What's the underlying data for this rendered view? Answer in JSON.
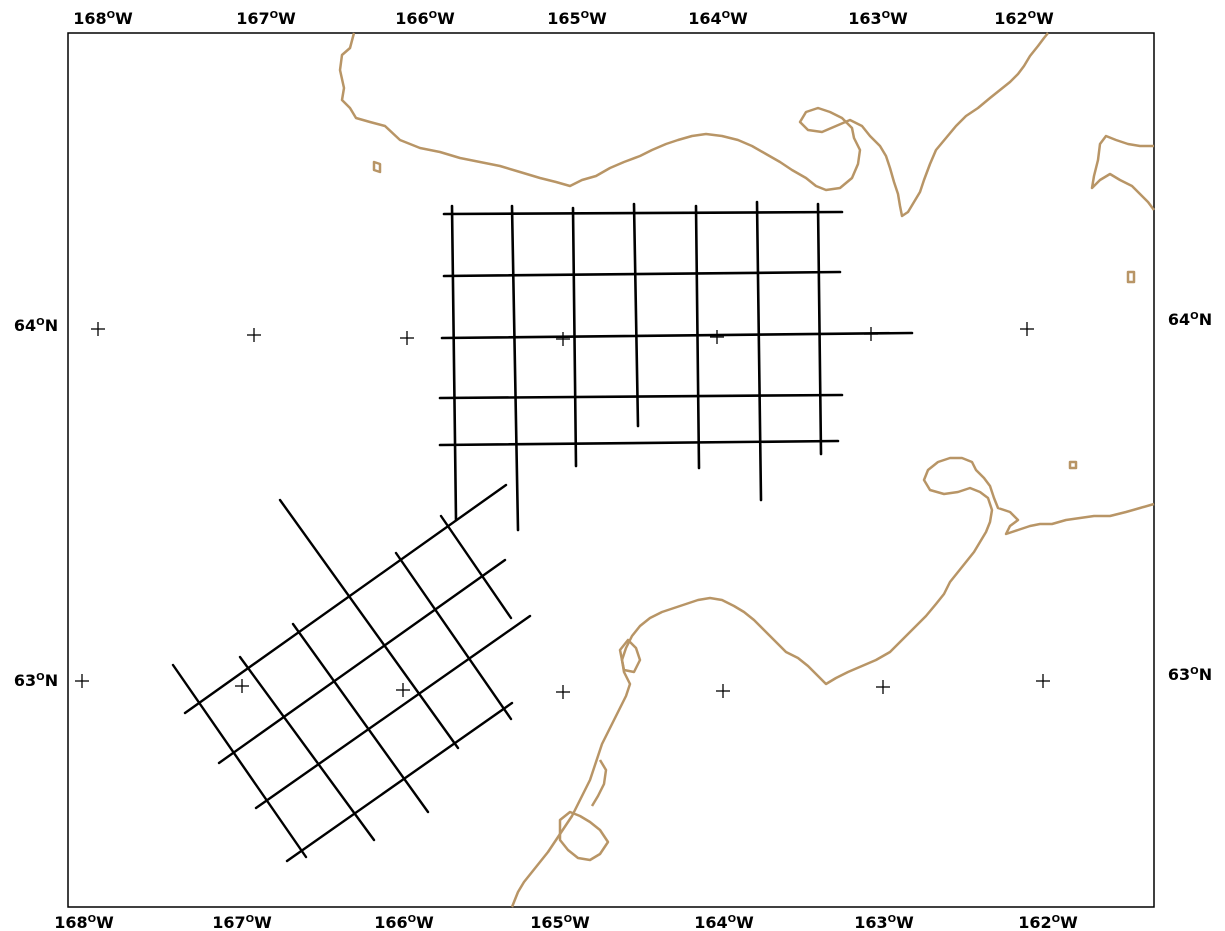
{
  "map": {
    "top_labels": [
      "168",
      "167",
      "166",
      "165",
      "164",
      "163",
      "162"
    ],
    "bottom_labels": [
      "168",
      "167",
      "166",
      "165",
      "164",
      "163",
      "162"
    ],
    "lon_suffix": "W",
    "left_labels": [
      "64",
      "63"
    ],
    "right_labels": [
      "64",
      "63"
    ],
    "lat_suffix": "N",
    "degree_glyph": "O"
  },
  "colors": {
    "frame": "#000000",
    "coastline": "#b89566",
    "survey_lines": "#000000",
    "survey_dots": "#2233cc",
    "graticule_markers": "#000000"
  },
  "survey_grids": [
    {
      "name": "",
      "orientation": "axis-aligned",
      "east_west_lines": 5,
      "north_south_lines": 7
    },
    {
      "name": "",
      "orientation": "rotated",
      "line_sets": 2,
      "lines_per_set": 5
    }
  ]
}
